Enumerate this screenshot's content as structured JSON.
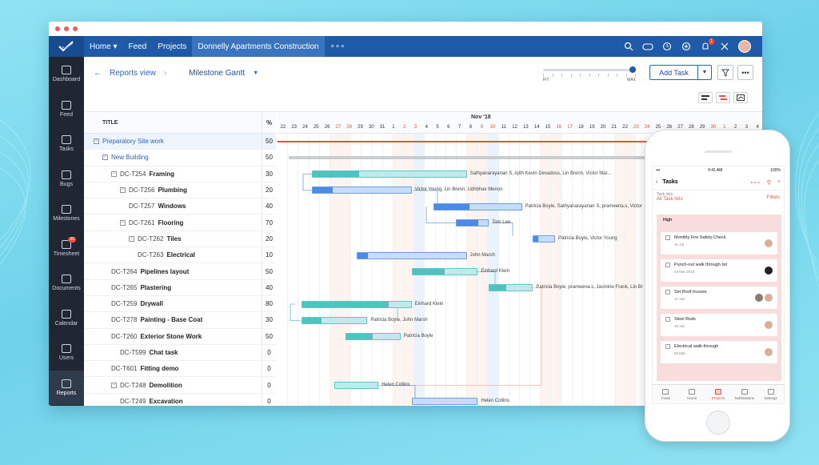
{
  "nav": {
    "items": [
      "Home ▾",
      "Feed",
      "Projects"
    ],
    "active_project": "Donnelly Apartments Construction",
    "more": "∘∘∘",
    "notification_count": "1"
  },
  "sidebar": {
    "items": [
      {
        "label": "Dashboard",
        "icon": "dashboard-icon"
      },
      {
        "label": "Feed",
        "icon": "feed-icon"
      },
      {
        "label": "Tasks",
        "icon": "tasks-icon"
      },
      {
        "label": "Bugs",
        "icon": "bug-icon"
      },
      {
        "label": "Milestones",
        "icon": "milestones-icon"
      },
      {
        "label": "Timesheet",
        "icon": "timesheet-icon",
        "badge": "50"
      },
      {
        "label": "Documents",
        "icon": "documents-icon"
      },
      {
        "label": "Calendar",
        "icon": "calendar-icon"
      },
      {
        "label": "Users",
        "icon": "users-icon"
      },
      {
        "label": "Reports",
        "icon": "reports-icon",
        "active": true
      }
    ]
  },
  "toolbar": {
    "back_label": "Reports view",
    "view_label": "Milestone Gantt",
    "slider_min": "FIT",
    "slider_max": "MAX",
    "add_task": "Add Task"
  },
  "table": {
    "col_title": "TITLE",
    "col_pct": "%",
    "rows": [
      {
        "code": "",
        "name": "Preparatory Site work",
        "pct": "50",
        "indent": 0,
        "toggle": "−",
        "blue": true,
        "sel": true
      },
      {
        "code": "",
        "name": "New Building",
        "pct": "50",
        "indent": 1,
        "toggle": "−",
        "blue": true
      },
      {
        "code": "DC-T254",
        "name": "Framing",
        "pct": "30",
        "indent": 2,
        "toggle": "−"
      },
      {
        "code": "DC-T256",
        "name": "Plumbing",
        "pct": "20",
        "indent": 3,
        "toggle": "−"
      },
      {
        "code": "DC-T257",
        "name": "Windows",
        "pct": "40",
        "indent": 4,
        "toggle": ""
      },
      {
        "code": "DC-T261",
        "name": "Flooring",
        "pct": "70",
        "indent": 3,
        "toggle": "−"
      },
      {
        "code": "DC-T262",
        "name": "Tiles",
        "pct": "20",
        "indent": 4,
        "toggle": "−"
      },
      {
        "code": "DC-T263",
        "name": "Electrical",
        "pct": "10",
        "indent": 5,
        "toggle": ""
      },
      {
        "code": "DC-T264",
        "name": "Pipelines layout",
        "pct": "50",
        "indent": 2,
        "toggle": ""
      },
      {
        "code": "DC-T265",
        "name": "Plastering",
        "pct": "40",
        "indent": 2,
        "toggle": ""
      },
      {
        "code": "DC-T259",
        "name": "Drywall",
        "pct": "80",
        "indent": 2,
        "toggle": ""
      },
      {
        "code": "DC-T278",
        "name": "Painting - Base Coat",
        "pct": "30",
        "indent": 2,
        "toggle": ""
      },
      {
        "code": "DC-T260",
        "name": "Exterior Stone Work",
        "pct": "50",
        "indent": 2,
        "toggle": ""
      },
      {
        "code": "DC-T599",
        "name": "Chat task",
        "pct": "0",
        "indent": 3,
        "toggle": ""
      },
      {
        "code": "DC-T601",
        "name": "Fitting demo",
        "pct": "0",
        "indent": 2,
        "toggle": ""
      },
      {
        "code": "DC-T248",
        "name": "Demolition",
        "pct": "0",
        "indent": 2,
        "toggle": "−"
      },
      {
        "code": "DC-T249",
        "name": "Excavation",
        "pct": "0",
        "indent": 3,
        "toggle": ""
      }
    ]
  },
  "gantt": {
    "month": "Nov '18",
    "days": [
      "22",
      "23",
      "24",
      "25",
      "26",
      "27",
      "28",
      "29",
      "30",
      "31",
      "1",
      "2",
      "3",
      "4",
      "5",
      "6",
      "7",
      "8",
      "9",
      "10",
      "11",
      "12",
      "13",
      "14",
      "15",
      "16",
      "17",
      "18",
      "19",
      "20",
      "21",
      "22",
      "23",
      "24",
      "25",
      "26",
      "27",
      "28",
      "29",
      "30",
      "1",
      "2",
      "3",
      "4",
      "5",
      "6"
    ],
    "red_days": [
      5,
      6,
      11,
      12,
      18,
      19,
      25,
      26,
      32,
      33,
      39,
      40
    ],
    "bars": [
      {
        "row": 2,
        "start": 3,
        "len": 14,
        "pct": 0.3,
        "kind": "t",
        "label": "Sathyanarayanan S, Ajith Kevin Devadoss, Lin Brenn, Victor Mar..."
      },
      {
        "row": 3,
        "start": 3,
        "len": 9,
        "pct": 0.2,
        "kind": "b",
        "label": "Victor Young, Lin Brenn, Udhbhav Menon"
      },
      {
        "row": 4,
        "start": 14,
        "len": 8,
        "pct": 0.4,
        "kind": "b",
        "label": "Patricia Boyle, Sathyanarayanan S, prameena.s, Victor"
      },
      {
        "row": 5,
        "start": 16,
        "len": 3,
        "pct": 0.7,
        "kind": "b",
        "label": "Tom Lee"
      },
      {
        "row": 6,
        "start": 23,
        "len": 2,
        "pct": 0.2,
        "kind": "b",
        "label": "Patricia Boyle, Victor Young"
      },
      {
        "row": 7,
        "start": 7,
        "len": 10,
        "pct": 0.1,
        "kind": "b",
        "label": "John Marsh"
      },
      {
        "row": 8,
        "start": 12,
        "len": 6,
        "pct": 0.5,
        "kind": "t",
        "label": "Einhard Klein"
      },
      {
        "row": 9,
        "start": 19,
        "len": 4,
        "pct": 0.4,
        "kind": "t",
        "label": "Patricia Boyle, prameena.s, Jasmine Frank, Lin Br"
      },
      {
        "row": 10,
        "start": 2,
        "len": 10,
        "pct": 0.8,
        "kind": "t",
        "label": "Einhard Klein"
      },
      {
        "row": 11,
        "start": 2,
        "len": 6,
        "pct": 0.3,
        "kind": "t",
        "label": "Patricia Boyle, John Marsh"
      },
      {
        "row": 12,
        "start": 6,
        "len": 5,
        "pct": 0.5,
        "kind": "t",
        "label": "Patricia Boyle"
      },
      {
        "row": 15,
        "start": 5,
        "len": 4,
        "pct": 0,
        "kind": "t",
        "label": "Helen Collins"
      },
      {
        "row": 16,
        "start": 12,
        "len": 6,
        "pct": 0,
        "kind": "b",
        "label": "Helen Collins"
      }
    ]
  },
  "phone": {
    "time": "9:41 AM",
    "battery": "100%",
    "title": "Tasks",
    "more": "∘∘∘",
    "list_label": "Task lists",
    "list_value": "All Task lists",
    "filters": "Filters",
    "priority": "High",
    "cards": [
      {
        "title": "Monthly Fire Safety Check",
        "date": "31 Jul",
        "avatars": 1
      },
      {
        "title": "Punch-out walk through list",
        "date": "23 Mar 2018",
        "avatars": 1,
        "dark": true
      },
      {
        "title": "Set Roof trusses",
        "date": "17 Jan",
        "avatars": 2
      },
      {
        "title": "Steel Rods",
        "date": "16 Jan",
        "avatars": 1
      },
      {
        "title": "Electrical walk-through",
        "date": "05 Mar",
        "avatars": 1
      }
    ],
    "tabs": [
      "Feed",
      "Home",
      "Projects",
      "Notifications",
      "Settings"
    ]
  }
}
